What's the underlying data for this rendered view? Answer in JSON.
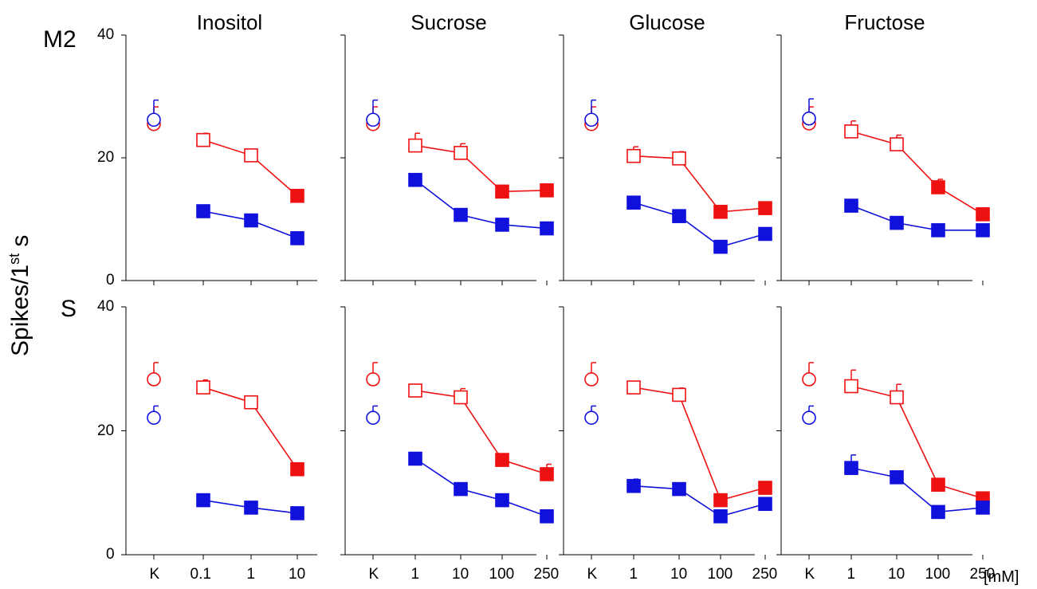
{
  "ylabel": {
    "main": "Spikes/1",
    "sup": "st",
    "rest": " s"
  },
  "unit": "[mM]",
  "chart_data": {
    "type": "line",
    "ylim": [
      0,
      40
    ],
    "yticks": [
      0,
      20,
      40
    ],
    "columns": [
      {
        "title": "Inositol",
        "categories": [
          "K",
          "0.1",
          "1",
          "10"
        ]
      },
      {
        "title": "Sucrose",
        "categories": [
          "K",
          "1",
          "10",
          "100",
          "250"
        ]
      },
      {
        "title": "Glucose",
        "categories": [
          "K",
          "1",
          "10",
          "100",
          "250"
        ]
      },
      {
        "title": "Fructose",
        "categories": [
          "K",
          "1",
          "10",
          "100",
          "250"
        ]
      }
    ],
    "rows": [
      {
        "label": "M2",
        "panels": [
          {
            "control": {
              "red": 25.5,
              "blue": 26.2,
              "red_err": 28.3,
              "blue_err": 29.4
            },
            "red": [
              22.9,
              20.4,
              13.8
            ],
            "red_filled": [
              false,
              false,
              true
            ],
            "blue": [
              11.3,
              9.8,
              6.9
            ],
            "blue_filled": [
              true,
              true,
              true
            ],
            "red_err": [
              24.0,
              20.9,
              14.0
            ],
            "blue_err": [
              11.8,
              10.1,
              7.1
            ]
          },
          {
            "control": {
              "red": 25.5,
              "blue": 26.2,
              "red_err": 28.3,
              "blue_err": 29.4
            },
            "red": [
              22.0,
              20.8,
              14.5,
              14.7
            ],
            "red_filled": [
              false,
              false,
              true,
              true
            ],
            "blue": [
              16.4,
              10.7,
              9.1,
              8.5
            ],
            "blue_filled": [
              true,
              true,
              true,
              true
            ],
            "red_err": [
              24.0,
              22.3,
              15.0,
              15.2
            ],
            "blue_err": [
              16.8,
              11.2,
              9.5,
              8.9
            ]
          },
          {
            "control": {
              "red": 25.5,
              "blue": 26.2,
              "red_err": 28.3,
              "blue_err": 29.4
            },
            "red": [
              20.3,
              19.9,
              11.2,
              11.8
            ],
            "red_filled": [
              false,
              false,
              true,
              true
            ],
            "blue": [
              12.7,
              10.5,
              5.5,
              7.6
            ],
            "blue_filled": [
              true,
              true,
              true,
              true
            ],
            "red_err": [
              21.8,
              21.0,
              11.6,
              12.2
            ],
            "blue_err": [
              13.0,
              10.8,
              5.8,
              8.0
            ]
          },
          {
            "control": {
              "red": 25.6,
              "blue": 26.4,
              "red_err": 28.3,
              "blue_err": 29.6
            },
            "red": [
              24.3,
              22.2,
              15.2,
              10.8
            ],
            "red_filled": [
              false,
              false,
              true,
              true
            ],
            "blue": [
              12.2,
              9.4,
              8.2,
              8.2
            ],
            "blue_filled": [
              true,
              true,
              true,
              true
            ],
            "red_err": [
              26.0,
              23.7,
              16.5,
              11.1
            ],
            "blue_err": [
              12.8,
              9.8,
              8.5,
              8.5
            ]
          }
        ]
      },
      {
        "label": "S",
        "panels": [
          {
            "control": {
              "red": 28.3,
              "blue": 22.1,
              "red_err": 31.0,
              "blue_err": 24.0
            },
            "red": [
              27.0,
              24.6,
              13.8
            ],
            "red_filled": [
              false,
              false,
              true
            ],
            "blue": [
              8.8,
              7.6,
              6.7
            ],
            "blue_filled": [
              true,
              true,
              true
            ],
            "red_err": [
              28.2,
              25.6,
              14.1
            ],
            "blue_err": [
              9.1,
              7.9,
              7.0
            ]
          },
          {
            "control": {
              "red": 28.3,
              "blue": 22.1,
              "red_err": 31.0,
              "blue_err": 24.0
            },
            "red": [
              26.5,
              25.4,
              15.3,
              13.0
            ],
            "red_filled": [
              false,
              false,
              true,
              true
            ],
            "blue": [
              15.5,
              10.6,
              8.8,
              6.2
            ],
            "blue_filled": [
              true,
              true,
              true,
              true
            ],
            "red_err": [
              27.5,
              26.8,
              15.7,
              14.6
            ],
            "blue_err": [
              16.2,
              11.6,
              9.1,
              6.5
            ]
          },
          {
            "control": {
              "red": 28.3,
              "blue": 22.1,
              "red_err": 31.0,
              "blue_err": 24.0
            },
            "red": [
              27.0,
              25.8,
              8.8,
              10.8
            ],
            "red_filled": [
              false,
              false,
              true,
              true
            ],
            "blue": [
              11.1,
              10.6,
              6.2,
              8.2
            ],
            "blue_filled": [
              true,
              true,
              true,
              true
            ],
            "red_err": [
              27.3,
              26.9,
              9.1,
              11.1
            ],
            "blue_err": [
              12.2,
              10.9,
              6.5,
              8.5
            ]
          },
          {
            "control": {
              "red": 28.3,
              "blue": 22.1,
              "red_err": 31.0,
              "blue_err": 24.0
            },
            "red": [
              27.2,
              25.4,
              11.3,
              9.1
            ],
            "red_filled": [
              false,
              false,
              true,
              true
            ],
            "blue": [
              14.0,
              12.5,
              6.9,
              7.6
            ],
            "blue_filled": [
              true,
              true,
              true,
              true
            ],
            "red_err": [
              29.8,
              27.5,
              11.9,
              9.6
            ],
            "blue_err": [
              16.1,
              12.8,
              7.2,
              7.9
            ]
          }
        ]
      }
    ],
    "colors": {
      "red": "#ee1111",
      "blue": "#1111dd"
    },
    "grid": false
  }
}
